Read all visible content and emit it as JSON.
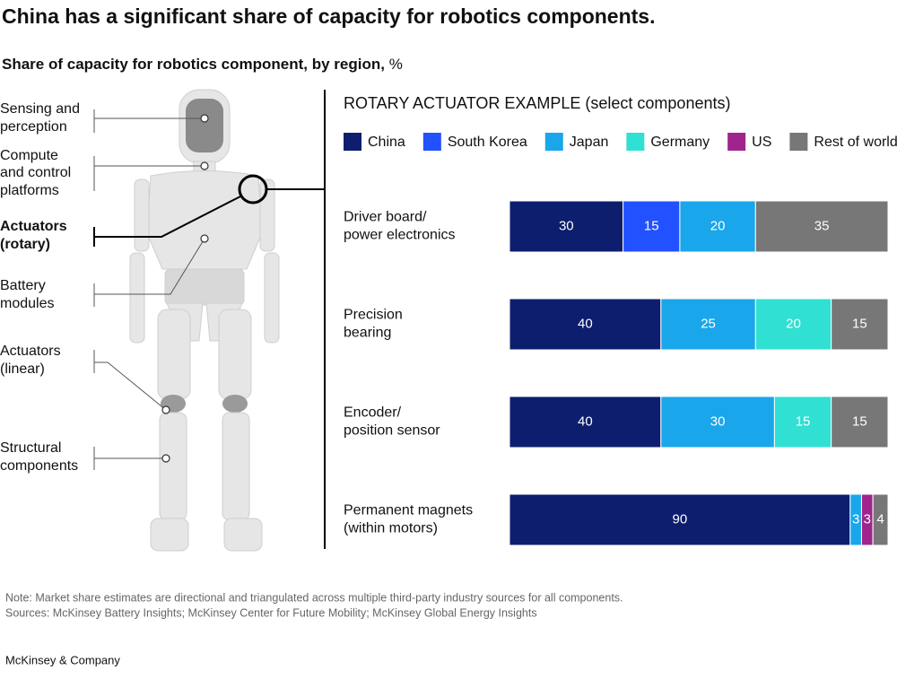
{
  "chart_data": {
    "type": "stacked-bar-horizontal",
    "title": "China has a significant share of capacity for robotics components.",
    "subtitle": "Share of capacity for robotics component, by region,",
    "unit": "%",
    "section_title": "ROTARY ACTUATOR EXAMPLE (select components)",
    "body_labels": [
      [
        "Sensing and",
        "perception"
      ],
      [
        "Compute",
        "and control",
        "platforms"
      ],
      [
        "Actuators",
        "(rotary)"
      ],
      [
        "Battery",
        "modules"
      ],
      [
        "Actuators",
        "(linear)"
      ],
      [
        "Structural",
        "components"
      ]
    ],
    "categories": [
      [
        "Driver board/",
        "power electronics"
      ],
      [
        "Precision",
        "bearing"
      ],
      [
        "Encoder/",
        "position sensor"
      ],
      [
        "Permanent magnets",
        "(within motors)"
      ]
    ],
    "xlim": [
      0,
      100
    ],
    "series": [
      {
        "name": "China",
        "color": "#0d1e6e",
        "values": [
          30,
          40,
          40,
          90
        ]
      },
      {
        "name": "South Korea",
        "color": "#2251ff",
        "values": [
          15,
          null,
          null,
          null
        ]
      },
      {
        "name": "Japan",
        "color": "#1aa6ea",
        "values": [
          20,
          25,
          30,
          3
        ]
      },
      {
        "name": "Germany",
        "color": "#30e0d2",
        "values": [
          null,
          20,
          15,
          null
        ]
      },
      {
        "name": "US",
        "color": "#a0248e",
        "values": [
          null,
          null,
          null,
          3
        ]
      },
      {
        "name": "Rest of world",
        "color": "#777777",
        "values": [
          35,
          15,
          15,
          4
        ]
      }
    ],
    "note": "Note: Market share estimates are directional and triangulated across multiple third-party industry sources for all components.",
    "sources": "Sources: McKinsey Battery Insights; McKinsey Center for Future Mobility; McKinsey Global Energy Insights",
    "brand": "McKinsey & Company"
  }
}
